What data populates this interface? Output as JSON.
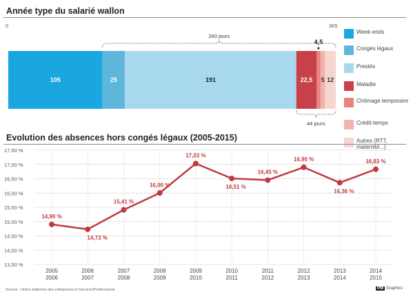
{
  "sections": {
    "top_title": "Année type du salarié wallon",
    "bottom_title": "Evolution des absences hors congés légaux (2005-2015)"
  },
  "chart_data": [
    {
      "type": "bar",
      "orientation": "horizontal-stacked",
      "title": "Année type du salarié wallon",
      "axis_min_label": "0",
      "axis_max_label": "365",
      "xlim": [
        0,
        365
      ],
      "segments": [
        {
          "name": "Week-ends",
          "value": 105,
          "label": "105",
          "color": "#1aa7e0"
        },
        {
          "name": "Congés légaux",
          "value": 25,
          "label": "25",
          "color": "#5fb6dc"
        },
        {
          "name": "Prestés",
          "value": 191,
          "label": "191",
          "color": "#a8d8ee"
        },
        {
          "name": "Maladie",
          "value": 22.5,
          "label": "22,5",
          "color": "#c8404a"
        },
        {
          "name": "Chômage temporaire",
          "value": 4.5,
          "label": "4,5",
          "color": "#e8847f"
        },
        {
          "name": "Crédit-temps",
          "value": 5,
          "label": "5",
          "color": "#f2b3ad"
        },
        {
          "name": "Autres (RTT, maternité...)",
          "value": 12,
          "label": "12",
          "color": "#f7d5d0"
        }
      ],
      "annotations": {
        "worked_brace": {
          "label": "260 jours",
          "from": 105,
          "to": 365
        },
        "absence_brace": {
          "label": "44 jours",
          "from": 321,
          "to": 365
        }
      },
      "legend_position": "right"
    },
    {
      "type": "line",
      "title": "Evolution des absences hors congés légaux (2005-2015)",
      "categories": [
        "2005\n2006",
        "2006\n2007",
        "2007\n2008",
        "2008\n2009",
        "2009\n2010",
        "2010\n2011",
        "2011\n2012",
        "2012\n2013",
        "2013\n2014",
        "2014\n2015"
      ],
      "values": [
        14.9,
        14.73,
        15.41,
        16.0,
        17.03,
        16.51,
        16.45,
        16.9,
        16.36,
        16.83
      ],
      "value_labels": [
        "14,90 %",
        "14,73 %",
        "15,41 %",
        "16,00 %",
        "17,03 %",
        "16,51 %",
        "16,45 %",
        "16,90 %",
        "16,36 %",
        "16,83 %"
      ],
      "ylim": [
        13.5,
        17.5
      ],
      "yticks": [
        13.5,
        14.0,
        14.5,
        15.0,
        15.5,
        16.0,
        16.5,
        17.0,
        17.5
      ],
      "ytick_labels": [
        "13,50 %",
        "14,00 %",
        "14,50 %",
        "15,00 %",
        "15,50 %",
        "16,00 %",
        "16,50 %",
        "17,00 %",
        "17,50 %"
      ],
      "line_color": "#c0393f",
      "grid": true
    }
  ],
  "footer": {
    "source": "Source : Union wallonne des entreprises et Securex/Professional",
    "logo_mark": "PM",
    "logo_text": "Graphics"
  }
}
